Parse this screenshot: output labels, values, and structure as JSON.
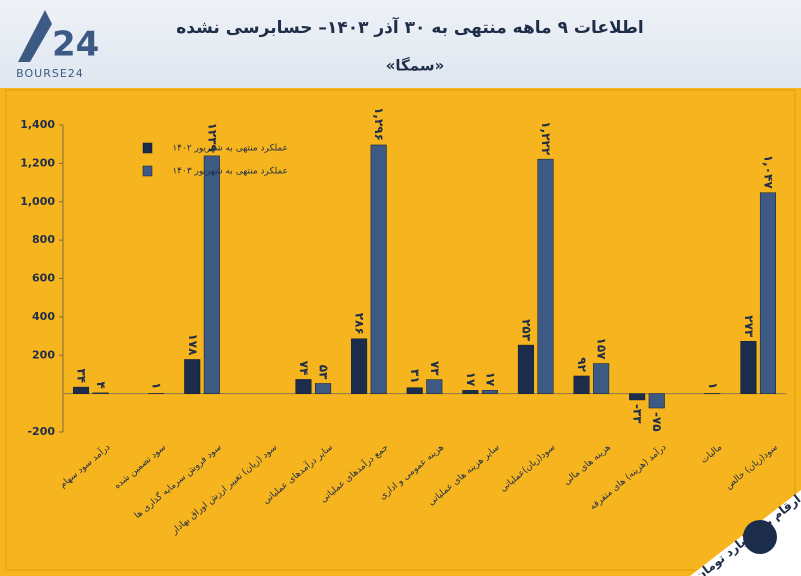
{
  "logo": "BOURSE24",
  "logo_mark": "24",
  "chart_data": {
    "type": "bar",
    "title": "اطلاعات ۹ ماهه منتهی به ۳۰ آذر ۱۴۰۳– حسابرسی نشده",
    "subtitle": "«سمگا»",
    "note": "ارقام به میلیارد تومان",
    "categories": [
      "درآمد سود سهام",
      "سود تضمین شده",
      "سود فروش سرمایه گذاری ها",
      "سود (زیان) تغییر ارزش اوراق بهادار",
      "سایر درآمدهای عملیاتی",
      "جمع درآمدهای عملیاتی",
      "هزینه عمومی و اداری",
      "سایر هزینه های عملیاتی",
      "سود(زیان)عملیاتی",
      "هزینه های مالی",
      "درآمد (هزینه) های متفرقه",
      "مالیات",
      "سود(زیان) خالص"
    ],
    "series": [
      {
        "name": "عملکرد منتهی به شهریور ۱۴۰۲",
        "color": "#1c2d4b",
        "values": [
          34,
          0,
          178,
          0,
          74,
          286,
          31,
          17,
          253,
          92,
          -33,
          0,
          273
        ],
        "value_labels": [
          "۳۴",
          null,
          "۱۷۸",
          null,
          "۷۴",
          "۲۸۶",
          "۳۱",
          "۱۷",
          "۲۵۳",
          "۹۲",
          "-۳۳",
          null,
          "۲۷۳"
        ]
      },
      {
        "name": "عملکرد منتهی به شهریور ۱۴۰۳",
        "color": "#3d5a84",
        "values": [
          4,
          1,
          1239,
          0,
          53,
          1296,
          73,
          17,
          1222,
          157,
          -75,
          1,
          1047
        ],
        "value_labels": [
          "۴",
          "۱",
          "۱۲۳۹",
          null,
          "۵۳",
          "۱,۲۹۶",
          "۷۳",
          "۱۷",
          "۱,۲۲۲",
          "۱۵۷",
          "-۷۵",
          "۱",
          "۱,۰۴۷"
        ]
      }
    ],
    "ylim": [
      -200,
      1400
    ],
    "yticks": [
      -200,
      200,
      400,
      600,
      800,
      {
        "value": 1000,
        "label": "1,000"
      },
      {
        "value": 1200,
        "label": "1,200"
      },
      {
        "value": 1400,
        "label": "1,400"
      }
    ],
    "legend": "upper-left"
  }
}
